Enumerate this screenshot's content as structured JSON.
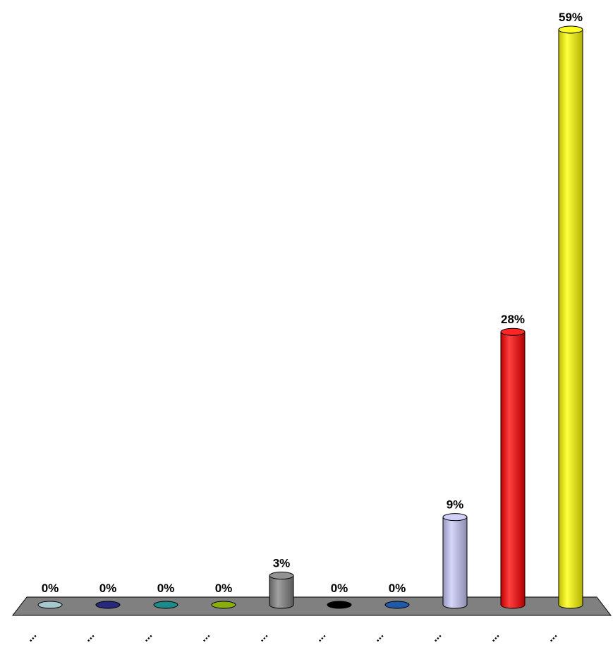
{
  "chart_data": {
    "type": "bar",
    "style": "3d-cylinder",
    "categories": [
      "...",
      "...",
      "...",
      "...",
      "...",
      "...",
      "...",
      "...",
      "...",
      "..."
    ],
    "values": [
      0,
      0,
      0,
      0,
      3,
      0,
      0,
      9,
      28,
      59
    ],
    "data_labels": [
      "0%",
      "0%",
      "0%",
      "0%",
      "3%",
      "0%",
      "0%",
      "9%",
      "28%",
      "59%"
    ],
    "colors": [
      "#a7c7cf",
      "#28287c",
      "#1a8a8a",
      "#8aae0a",
      "#808080",
      "#000000",
      "#1e5aa8",
      "#c8c8f8",
      "#ff0000",
      "#ffff00"
    ],
    "floor_color": "#808080",
    "unit": "%",
    "ylim": [
      0,
      59
    ],
    "grid": false,
    "legend": "none"
  }
}
